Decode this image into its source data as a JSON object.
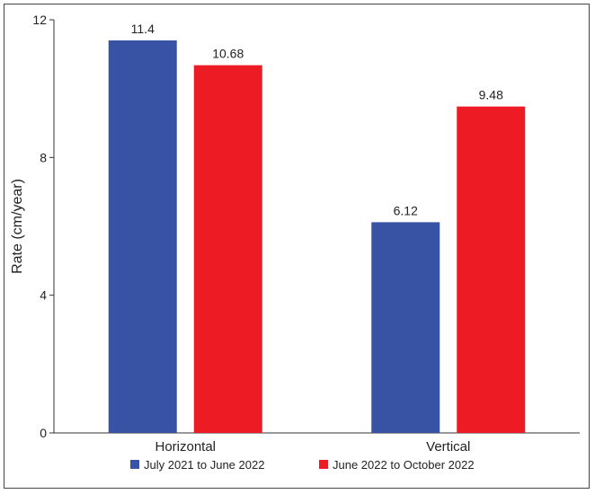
{
  "chart_data": {
    "type": "bar",
    "title": "",
    "xlabel": "",
    "ylabel": "Rate (cm/year)",
    "categories": [
      "Horizontal",
      "Vertical"
    ],
    "series": [
      {
        "name": "July 2021 to June 2022",
        "values": [
          11.4,
          6.12
        ],
        "labels": [
          "11.4",
          "6.12"
        ],
        "color": "#3853a4"
      },
      {
        "name": "June 2022 to October 2022",
        "values": [
          10.68,
          9.48
        ],
        "labels": [
          "10.68",
          "9.48"
        ],
        "color": "#ed1c24"
      }
    ],
    "ylim": [
      0,
      12
    ],
    "yticks": [
      0,
      4,
      8,
      12
    ],
    "grid": false,
    "legend_position": "bottom"
  }
}
